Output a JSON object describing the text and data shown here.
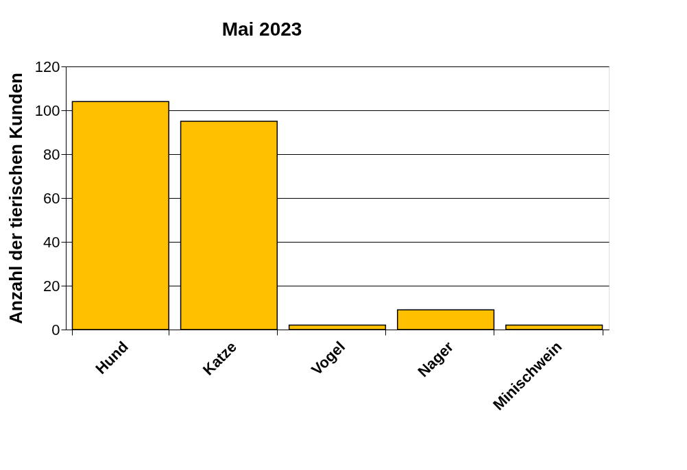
{
  "chart_data": {
    "type": "bar",
    "title": "Mai 2023",
    "ylabel": "Anzahl der tierischen Kunden",
    "categories": [
      "Hund",
      "Katze",
      "Vogel",
      "Nager",
      "Minischwein"
    ],
    "values": [
      104,
      95,
      2,
      9,
      2
    ],
    "color": "#ffc000",
    "ylim": [
      0,
      120
    ],
    "yticks": [
      0,
      20,
      40,
      60,
      80,
      100,
      120
    ],
    "grid": "y",
    "legend": false
  }
}
